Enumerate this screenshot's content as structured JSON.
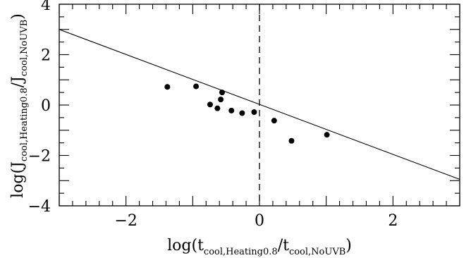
{
  "chart_data": {
    "type": "scatter",
    "xlim": [
      -3,
      3
    ],
    "ylim": [
      -4,
      4
    ],
    "x_ticks": [
      -2,
      0,
      2
    ],
    "y_ticks": [
      -4,
      -2,
      0,
      2,
      4
    ],
    "x_tick_labels": [
      "−2",
      "0",
      "2"
    ],
    "y_tick_labels": [
      "−4",
      "−2",
      "0",
      "2",
      "4"
    ],
    "xlabel": {
      "prefix": "log(t",
      "sub1": "cool,Heating0.8",
      "mid": "/t",
      "sub2": "cool,NoUVB",
      "suffix": ")"
    },
    "ylabel": {
      "prefix": "log(J",
      "sub1": "cool,Heating0.8",
      "mid": "/J",
      "sub2": "cool,NoUVB",
      "suffix": ")"
    },
    "points": [
      {
        "x": -1.38,
        "y": 0.72
      },
      {
        "x": -0.95,
        "y": 0.74
      },
      {
        "x": -0.74,
        "y": 0.02
      },
      {
        "x": -0.63,
        "y": -0.13
      },
      {
        "x": -0.58,
        "y": 0.22
      },
      {
        "x": -0.56,
        "y": 0.5
      },
      {
        "x": -0.42,
        "y": -0.22
      },
      {
        "x": -0.26,
        "y": -0.32
      },
      {
        "x": -0.08,
        "y": -0.28
      },
      {
        "x": 0.22,
        "y": -0.62
      },
      {
        "x": 0.48,
        "y": -1.42
      },
      {
        "x": 1.01,
        "y": -1.18
      }
    ],
    "fit_line": {
      "x1": -3,
      "y1": 3.0,
      "x2": 3,
      "y2": -2.95
    },
    "reference_line": {
      "x": 0,
      "style": "dashed"
    },
    "grid": false,
    "colors": {
      "axis": "#000000",
      "points": "#000000",
      "line": "#000000",
      "background": "#ffffff"
    }
  }
}
